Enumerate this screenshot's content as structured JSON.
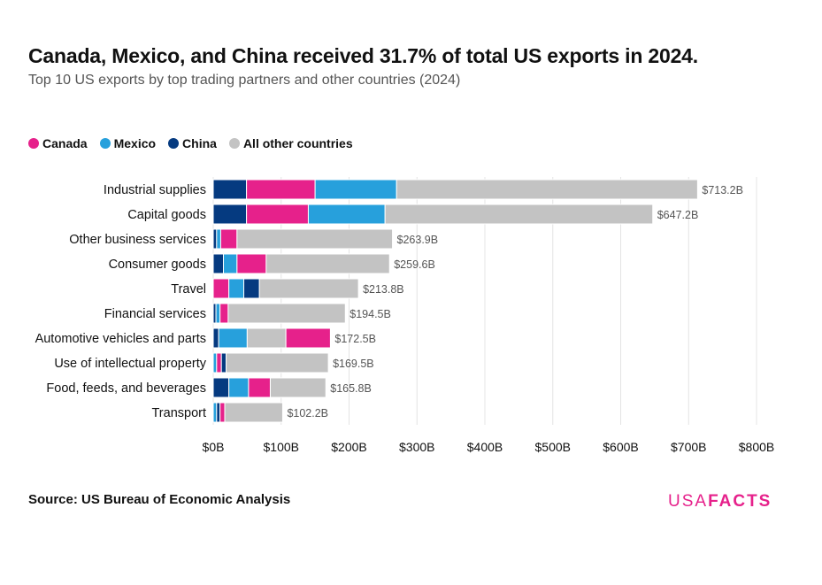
{
  "title": "Canada, Mexico, and China received 31.7% of total US exports in 2024.",
  "subtitle": "Top 10 US exports by top trading partners and other countries (2024)",
  "source_label": "Source:",
  "source_text": "US Bureau of Economic Analysis",
  "logo": {
    "usa": "USA",
    "facts": "FACTS"
  },
  "colors": {
    "canada": "#e6218b",
    "mexico": "#27a0dc",
    "china": "#053a80",
    "other": "#c3c3c3"
  },
  "chart_data": {
    "type": "bar",
    "orientation": "horizontal",
    "stacked": true,
    "xlim": [
      0,
      800
    ],
    "x_ticks": [
      0,
      100,
      200,
      300,
      400,
      500,
      600,
      700,
      800
    ],
    "x_tick_labels": [
      "$0B",
      "$100B",
      "$200B",
      "$300B",
      "$400B",
      "$500B",
      "$600B",
      "$700B",
      "$800B"
    ],
    "grid": true,
    "legend_position": "top-left",
    "legend": [
      {
        "key": "canada",
        "name": "Canada"
      },
      {
        "key": "mexico",
        "name": "Mexico"
      },
      {
        "key": "china",
        "name": "China"
      },
      {
        "key": "other",
        "name": "All other countries"
      }
    ],
    "categories": [
      {
        "label": "Industrial supplies",
        "total_label": "$713.2B",
        "segments": [
          [
            "china",
            49
          ],
          [
            "canada",
            101
          ],
          [
            "mexico",
            120
          ],
          [
            "other",
            443.2
          ]
        ]
      },
      {
        "label": "Capital goods",
        "total_label": "$647.2B",
        "segments": [
          [
            "china",
            49
          ],
          [
            "canada",
            91
          ],
          [
            "mexico",
            113
          ],
          [
            "other",
            394.2
          ]
        ]
      },
      {
        "label": "Other business services",
        "total_label": "$263.9B",
        "segments": [
          [
            "china",
            5
          ],
          [
            "mexico",
            6
          ],
          [
            "canada",
            24
          ],
          [
            "other",
            228.9
          ]
        ]
      },
      {
        "label": "Consumer goods",
        "total_label": "$259.6B",
        "segments": [
          [
            "china",
            15
          ],
          [
            "mexico",
            20
          ],
          [
            "canada",
            43
          ],
          [
            "other",
            181.6
          ]
        ]
      },
      {
        "label": "Travel",
        "total_label": "$213.8B",
        "segments": [
          [
            "canada",
            23
          ],
          [
            "mexico",
            22
          ],
          [
            "china",
            23
          ],
          [
            "other",
            145.8
          ]
        ]
      },
      {
        "label": "Financial services",
        "total_label": "$194.5B",
        "segments": [
          [
            "china",
            4
          ],
          [
            "mexico",
            6
          ],
          [
            "canada",
            12
          ],
          [
            "other",
            172.5
          ]
        ]
      },
      {
        "label": "Automotive vehicles and parts",
        "total_label": "$172.5B",
        "segments": [
          [
            "china",
            8
          ],
          [
            "mexico",
            42
          ],
          [
            "other",
            57
          ],
          [
            "canada",
            65.5
          ]
        ]
      },
      {
        "label": "Use of intellectual property",
        "total_label": "$169.5B",
        "segments": [
          [
            "mexico",
            5
          ],
          [
            "canada",
            7
          ],
          [
            "china",
            7
          ],
          [
            "other",
            150.5
          ]
        ]
      },
      {
        "label": "Food, feeds, and beverages",
        "total_label": "$165.8B",
        "segments": [
          [
            "china",
            23
          ],
          [
            "mexico",
            29
          ],
          [
            "canada",
            32
          ],
          [
            "other",
            81.8
          ]
        ]
      },
      {
        "label": "Transport",
        "total_label": "$102.2B",
        "segments": [
          [
            "mexico",
            5
          ],
          [
            "china",
            5
          ],
          [
            "canada",
            7
          ],
          [
            "other",
            85.2
          ]
        ]
      }
    ]
  }
}
